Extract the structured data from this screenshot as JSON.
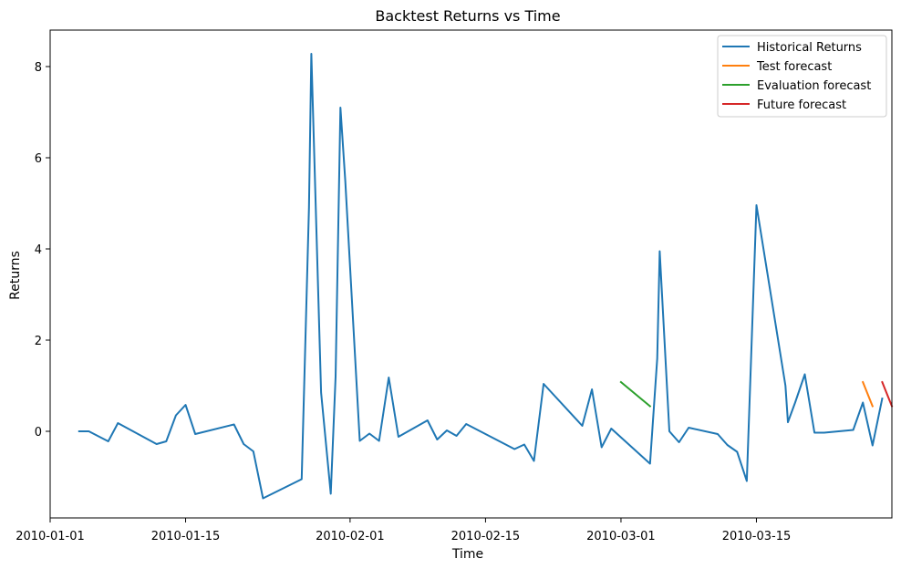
{
  "chart_data": {
    "type": "line",
    "title": "Backtest Returns vs Time",
    "xlabel": "Time",
    "ylabel": "Returns",
    "xlim": [
      "2010-01-01",
      "2010-03-29"
    ],
    "ylim": [
      -1.9,
      8.8
    ],
    "x_ticks": [
      "2010-01-01",
      "2010-01-15",
      "2010-02-01",
      "2010-02-15",
      "2010-03-01",
      "2010-03-15"
    ],
    "y_ticks": [
      0,
      2,
      4,
      6,
      8
    ],
    "grid": false,
    "legend_position": "top-right",
    "series": [
      {
        "name": "Historical Returns",
        "color": "#1f77b4",
        "points": [
          [
            "2010-01-04",
            0.0
          ],
          [
            "2010-01-05",
            0.0
          ],
          [
            "2010-01-07",
            -0.22
          ],
          [
            "2010-01-08",
            0.18
          ],
          [
            "2010-01-12",
            -0.28
          ],
          [
            "2010-01-13",
            -0.22
          ],
          [
            "2010-01-14",
            0.35
          ],
          [
            "2010-01-15",
            0.58
          ],
          [
            "2010-01-16",
            -0.06
          ],
          [
            "2010-01-20",
            0.15
          ],
          [
            "2010-01-21",
            -0.28
          ],
          [
            "2010-01-22",
            -0.44
          ],
          [
            "2010-01-23",
            -1.47
          ],
          [
            "2010-01-27",
            -1.05
          ],
          [
            "2010-01-27 18:00",
            4.9
          ],
          [
            "2010-01-28",
            8.28
          ],
          [
            "2010-01-29",
            0.85
          ],
          [
            "2010-01-30",
            -1.37
          ],
          [
            "2010-01-30 12:00",
            1.2
          ],
          [
            "2010-01-31",
            7.1
          ],
          [
            "2010-01-31 12:00",
            5.5
          ],
          [
            "2010-02-02",
            -0.21
          ],
          [
            "2010-02-03",
            -0.05
          ],
          [
            "2010-02-04",
            -0.21
          ],
          [
            "2010-02-05",
            1.18
          ],
          [
            "2010-02-06",
            -0.12
          ],
          [
            "2010-02-09",
            0.24
          ],
          [
            "2010-02-10",
            -0.18
          ],
          [
            "2010-02-11",
            0.02
          ],
          [
            "2010-02-12",
            -0.1
          ],
          [
            "2010-02-13",
            0.16
          ],
          [
            "2010-02-18",
            -0.39
          ],
          [
            "2010-02-19",
            -0.29
          ],
          [
            "2010-02-20",
            -0.65
          ],
          [
            "2010-02-21",
            1.04
          ],
          [
            "2010-02-25",
            0.12
          ],
          [
            "2010-02-26",
            0.92
          ],
          [
            "2010-02-27",
            -0.35
          ],
          [
            "2010-02-28",
            0.06
          ],
          [
            "2010-03-04",
            -0.71
          ],
          [
            "2010-03-04 18:00",
            1.6
          ],
          [
            "2010-03-05",
            3.95
          ],
          [
            "2010-03-06",
            0.0
          ],
          [
            "2010-03-07",
            -0.24
          ],
          [
            "2010-03-08",
            0.08
          ],
          [
            "2010-03-11",
            -0.06
          ],
          [
            "2010-03-12",
            -0.3
          ],
          [
            "2010-03-13",
            -0.45
          ],
          [
            "2010-03-14",
            -1.09
          ],
          [
            "2010-03-15",
            4.96
          ],
          [
            "2010-03-18",
            1.0
          ],
          [
            "2010-03-18 06:00",
            0.2
          ],
          [
            "2010-03-19",
            0.63
          ],
          [
            "2010-03-20",
            1.25
          ],
          [
            "2010-03-21",
            -0.03
          ],
          [
            "2010-03-22",
            -0.03
          ],
          [
            "2010-03-25",
            0.03
          ],
          [
            "2010-03-26",
            0.63
          ],
          [
            "2010-03-27",
            -0.31
          ],
          [
            "2010-03-28",
            0.72
          ]
        ]
      },
      {
        "name": "Test forecast",
        "color": "#ff7f0e",
        "points": [
          [
            "2010-03-26",
            1.08
          ],
          [
            "2010-03-27",
            0.55
          ]
        ]
      },
      {
        "name": "Evaluation forecast",
        "color": "#2ca02c",
        "points": [
          [
            "2010-03-01",
            1.08
          ],
          [
            "2010-03-04",
            0.55
          ]
        ]
      },
      {
        "name": "Future forecast",
        "color": "#d62728",
        "points": [
          [
            "2010-03-28",
            1.08
          ],
          [
            "2010-03-29",
            0.55
          ]
        ]
      }
    ]
  }
}
